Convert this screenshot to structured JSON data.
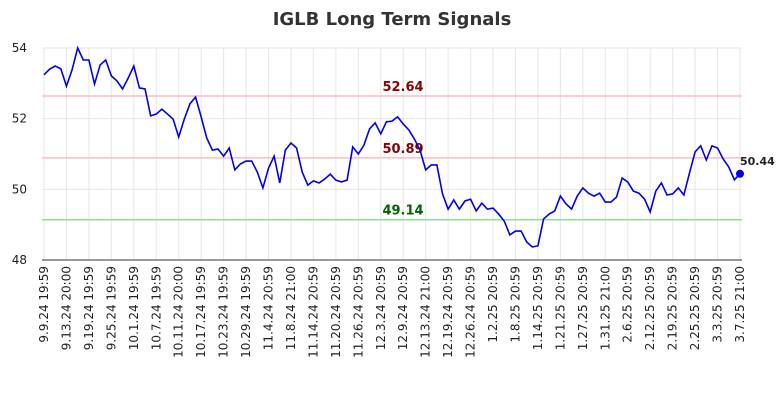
{
  "chart_data": {
    "type": "line",
    "title": "IGLB Long Term Signals",
    "categories": [
      "9.9.24 19:59",
      null,
      null,
      null,
      "9.13.24 20:00",
      null,
      null,
      null,
      "9.19.24 19:59",
      null,
      null,
      null,
      "9.25.24 19:59",
      null,
      null,
      null,
      "10.1.24 19:59",
      null,
      null,
      null,
      "10.7.24 19:59",
      null,
      null,
      null,
      "10.11.24 20:00",
      null,
      null,
      null,
      "10.17.24 19:59",
      null,
      null,
      null,
      "10.23.24 19:59",
      null,
      null,
      null,
      "10.29.24 19:59",
      null,
      null,
      null,
      "11.4.24 20:59",
      null,
      null,
      null,
      "11.8.24 21:00",
      null,
      null,
      null,
      "11.14.24 20:59",
      null,
      null,
      null,
      "11.20.24 20:59",
      null,
      null,
      null,
      "11.26.24 20:59",
      null,
      null,
      null,
      "12.3.24 20:59",
      null,
      null,
      null,
      "12.9.24 20:59",
      null,
      null,
      null,
      "12.13.24 21:00",
      null,
      null,
      null,
      "12.19.24 20:59",
      null,
      null,
      null,
      "12.26.24 20:59",
      null,
      null,
      null,
      "1.2.25 20:59",
      null,
      null,
      null,
      "1.8.25 20:59",
      null,
      null,
      null,
      "1.14.25 20:59",
      null,
      null,
      null,
      "1.21.25 20:59",
      null,
      null,
      null,
      "1.27.25 20:59",
      null,
      null,
      null,
      "1.31.25 21:00",
      null,
      null,
      null,
      "2.6.25 20:59",
      null,
      null,
      null,
      "2.12.25 20:59",
      null,
      null,
      null,
      "2.19.25 20:59",
      null,
      null,
      null,
      "2.25.25 20:59",
      null,
      null,
      null,
      "3.3.25 20:59",
      null,
      null,
      null,
      "3.7.25 21:00"
    ],
    "values": [
      53.24,
      53.4,
      53.49,
      53.41,
      52.92,
      53.38,
      54.0,
      53.66,
      53.66,
      52.98,
      53.52,
      53.66,
      53.21,
      53.07,
      52.84,
      53.15,
      53.49,
      52.87,
      52.84,
      52.08,
      52.13,
      52.27,
      52.13,
      51.99,
      51.48,
      51.99,
      52.42,
      52.61,
      52.05,
      51.45,
      51.11,
      51.14,
      50.94,
      51.17,
      50.55,
      50.72,
      50.8,
      50.8,
      50.49,
      50.04,
      50.6,
      50.94,
      50.18,
      51.11,
      51.31,
      51.17,
      50.49,
      50.12,
      50.24,
      50.18,
      50.29,
      50.43,
      50.26,
      50.21,
      50.26,
      51.2,
      51.0,
      51.25,
      51.71,
      51.88,
      51.57,
      51.91,
      51.93,
      52.05,
      51.85,
      51.68,
      51.42,
      51.11,
      50.55,
      50.69,
      50.69,
      49.87,
      49.44,
      49.7,
      49.44,
      49.67,
      49.72,
      49.39,
      49.61,
      49.44,
      49.47,
      49.3,
      49.1,
      48.71,
      48.82,
      48.82,
      48.51,
      48.37,
      48.4,
      49.16,
      49.3,
      49.39,
      49.81,
      49.59,
      49.44,
      49.81,
      50.04,
      49.89,
      49.81,
      49.89,
      49.64,
      49.64,
      49.78,
      50.32,
      50.21,
      49.95,
      49.89,
      49.72,
      49.36,
      49.95,
      50.18,
      49.84,
      49.87,
      50.04,
      49.84,
      50.46,
      51.06,
      51.23,
      50.83,
      51.23,
      51.17,
      50.86,
      50.63,
      50.27,
      50.44
    ],
    "color": "#0000ee",
    "ylim": [
      48,
      54
    ],
    "yticks": [
      48,
      50,
      52,
      54
    ],
    "grid": true,
    "hlines": [
      {
        "value": 52.64,
        "color": "#ffbbbb",
        "label_color": "#8b0000"
      },
      {
        "value": 50.89,
        "color": "#ffbbbb",
        "label_color": "#8b0000"
      },
      {
        "value": 49.14,
        "color": "#90e090",
        "label_color": "#006400"
      }
    ]
  }
}
